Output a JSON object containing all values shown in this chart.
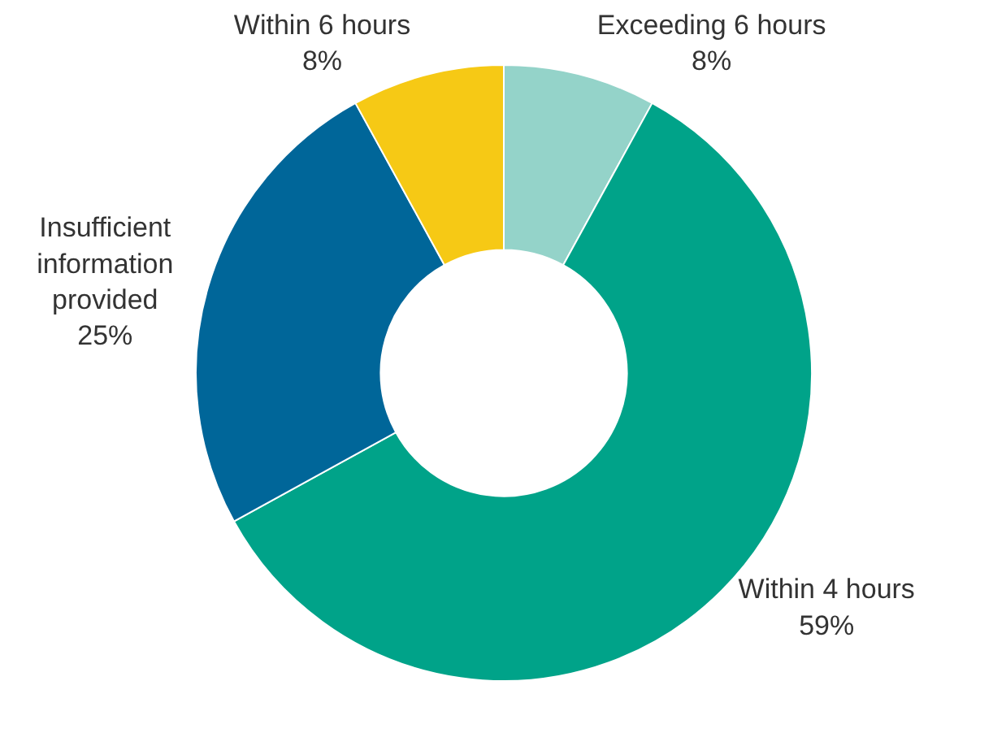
{
  "chart_data": {
    "type": "donut",
    "categories": [
      "Exceeding 6 hours",
      "Within 4 hours",
      "Insufficient information provided",
      "Within 6 hours"
    ],
    "values": [
      8,
      59,
      25,
      8
    ],
    "colors": [
      "#94d3c9",
      "#00a389",
      "#006699",
      "#f6c915"
    ],
    "value_labels": [
      "8%",
      "59%",
      "25%",
      "8%"
    ],
    "legend": false
  }
}
